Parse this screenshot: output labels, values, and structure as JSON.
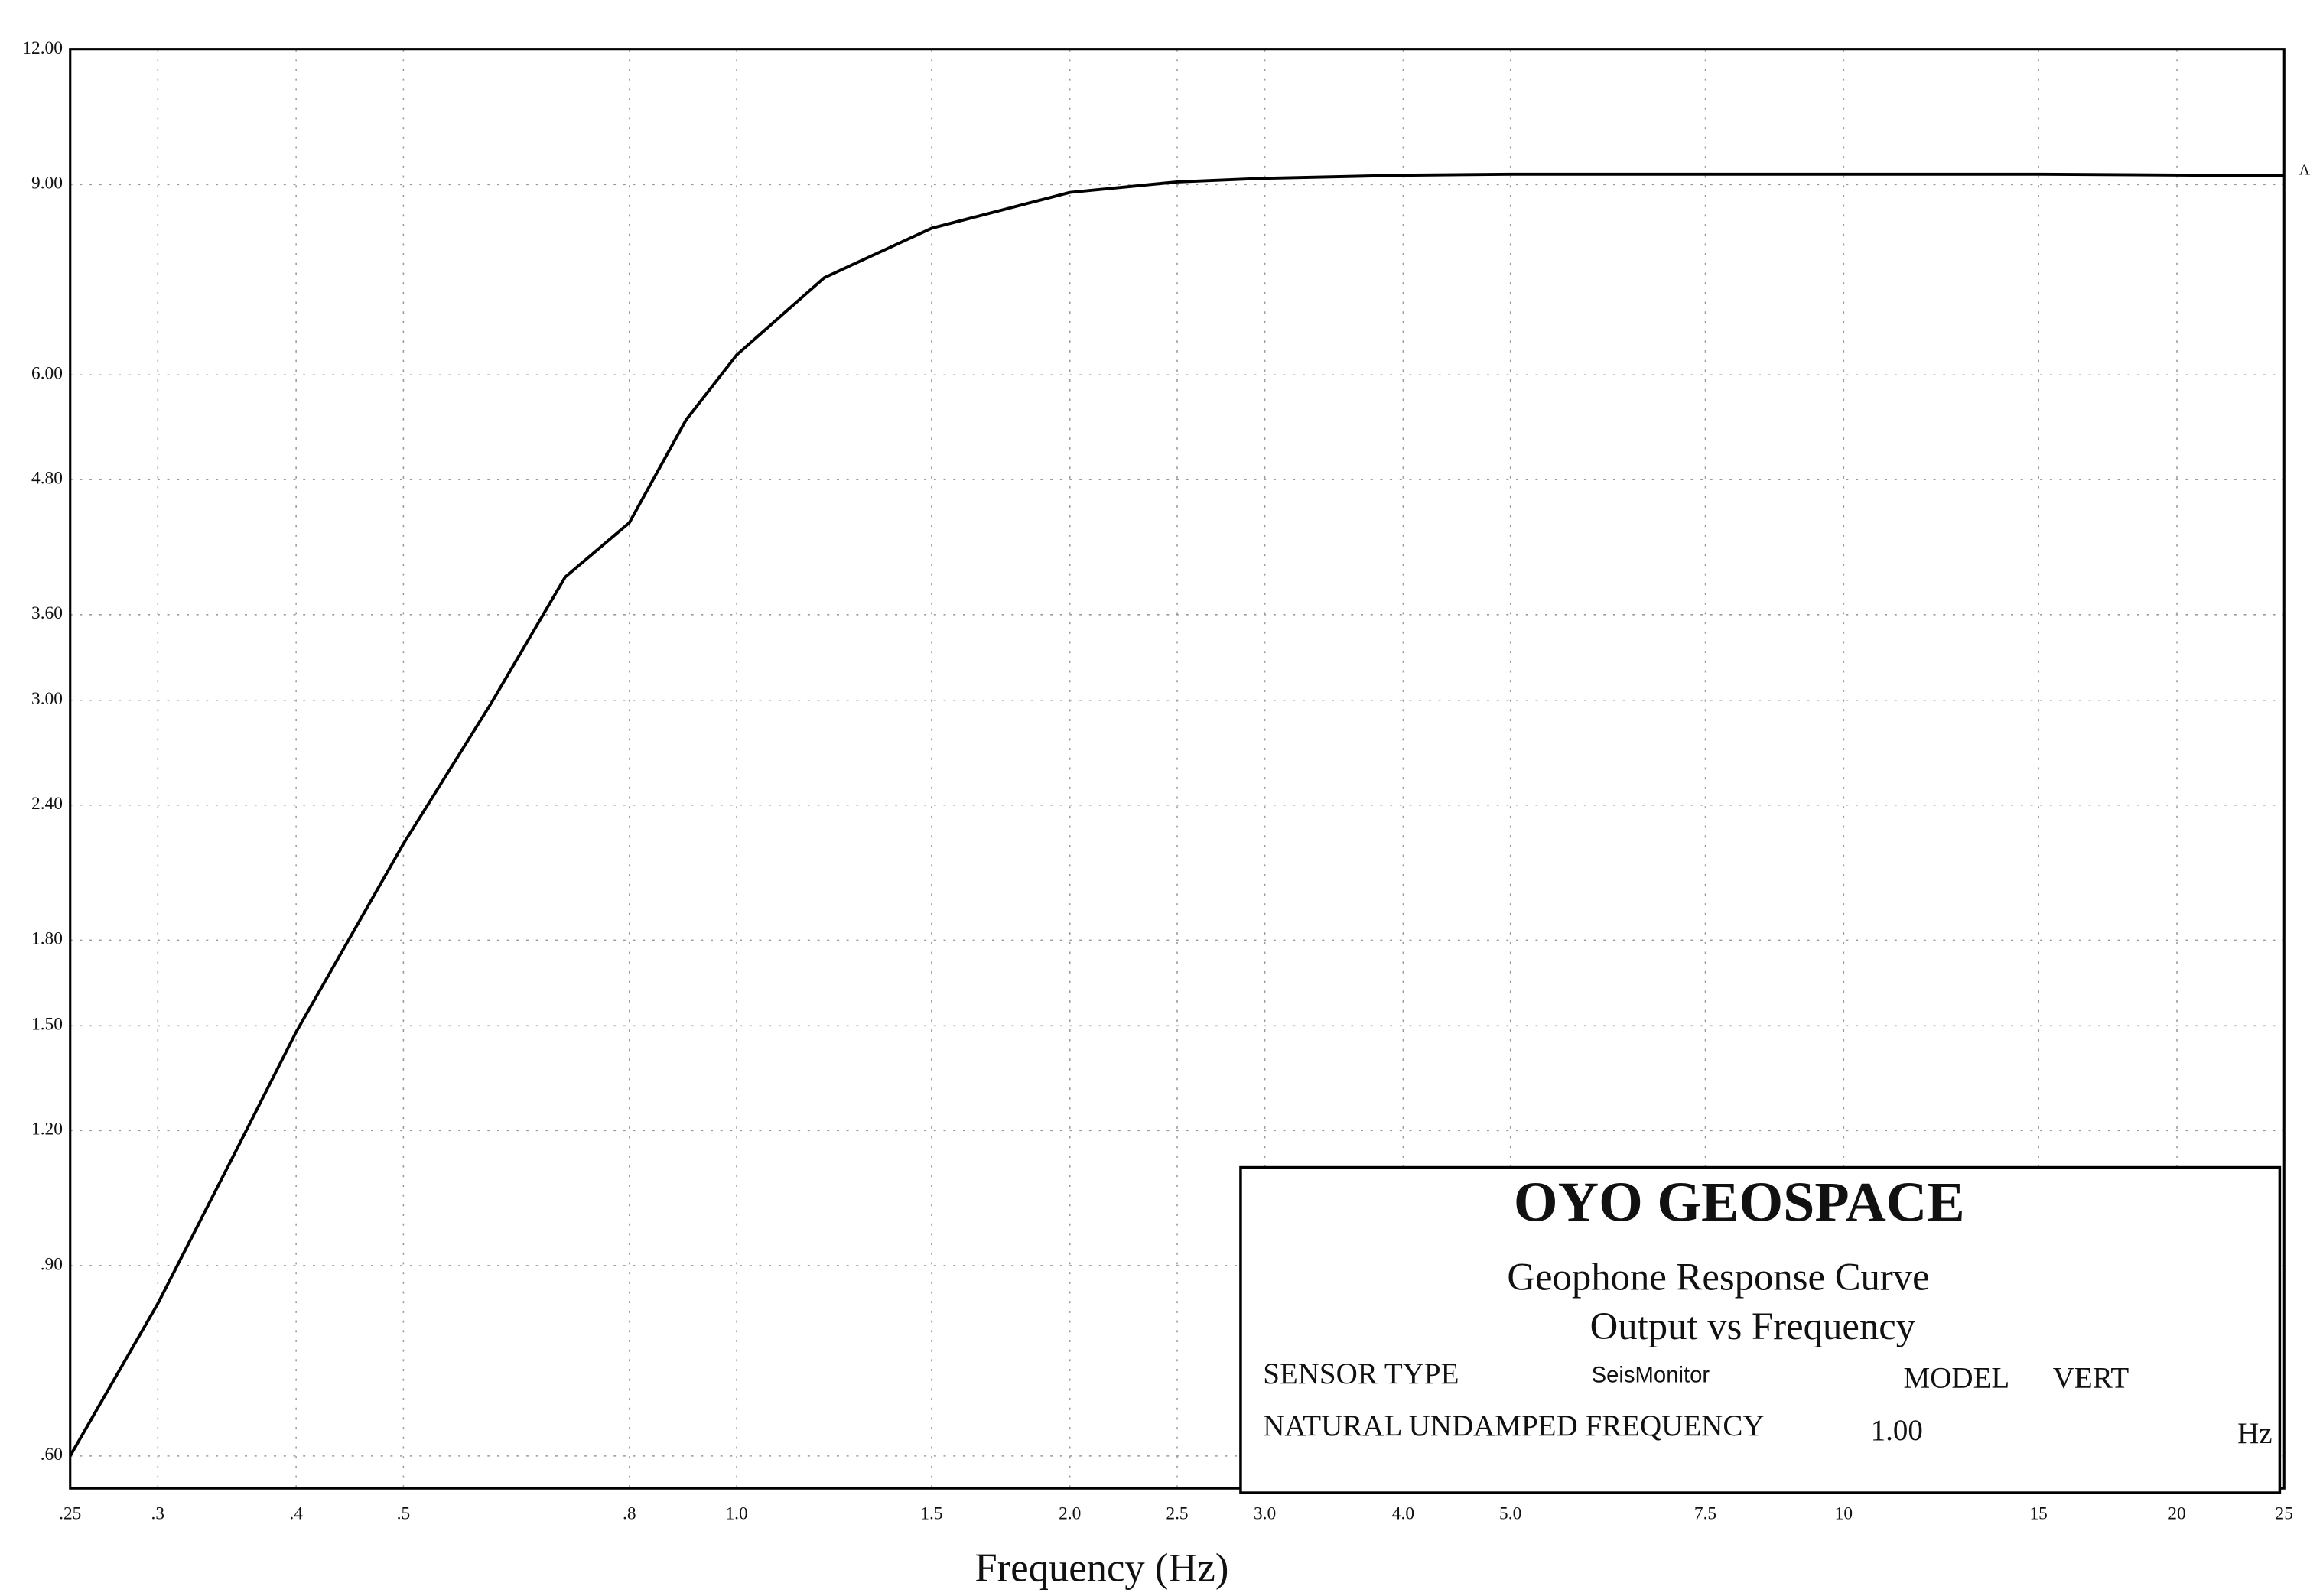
{
  "chart_data": {
    "type": "line",
    "xlabel": "Frequency (Hz)",
    "x": [
      0.25,
      0.3,
      0.35,
      0.4,
      0.5,
      0.6,
      0.7,
      0.8,
      0.9,
      1.0,
      1.2,
      1.5,
      2.0,
      2.5,
      3.0,
      4.0,
      5.0,
      7.5,
      10,
      15,
      25
    ],
    "series": [
      {
        "name": "A",
        "color": "#000000",
        "values": [
          0.6,
          0.83,
          1.13,
          1.48,
          2.21,
          2.98,
          3.9,
          4.38,
          5.45,
          6.26,
          7.38,
          8.2,
          8.85,
          9.05,
          9.12,
          9.18,
          9.2,
          9.2,
          9.2,
          9.2,
          9.17
        ]
      }
    ],
    "xscale": "log",
    "yscale": "log",
    "xlim": [
      0.25,
      25
    ],
    "ylim": [
      0.56,
      12
    ],
    "xticks": [
      {
        "value": 0.25,
        "label": ".25"
      },
      {
        "value": 0.3,
        "label": ".3"
      },
      {
        "value": 0.4,
        "label": ".4"
      },
      {
        "value": 0.5,
        "label": ".5"
      },
      {
        "value": 0.8,
        "label": ".8"
      },
      {
        "value": 1,
        "label": "1.0"
      },
      1.5,
      {
        "value": 2,
        "label": "2.0"
      },
      2.5,
      {
        "value": 3,
        "label": "3.0"
      },
      {
        "value": 4,
        "label": "4.0"
      },
      {
        "value": 5,
        "label": "5.0"
      },
      7.5,
      10,
      15,
      20,
      25
    ],
    "yticks": [
      {
        "value": 12,
        "label": "12.00"
      },
      {
        "value": 9,
        "label": "9.00"
      },
      {
        "value": 6,
        "label": "6.00"
      },
      {
        "value": 4.8,
        "label": "4.80"
      },
      {
        "value": 3.6,
        "label": "3.60"
      },
      {
        "value": 3,
        "label": "3.00"
      },
      {
        "value": 2.4,
        "label": "2.40"
      },
      {
        "value": 1.8,
        "label": "1.80"
      },
      {
        "value": 1.5,
        "label": "1.50"
      },
      {
        "value": 1.2,
        "label": "1.20"
      },
      {
        "value": 0.9,
        "label": ".90"
      },
      {
        "value": 0.6,
        "label": ".60"
      }
    ],
    "grid": true,
    "info_box": {
      "company": "OYO GEOSPACE",
      "title": "Geophone Response Curve",
      "subtitle": "Output vs Frequency",
      "sensor_type_label": "SENSOR TYPE",
      "sensor_type": "SeisMonitor",
      "model_label": "MODEL",
      "model": "VERT",
      "frequency_label": "NATURAL UNDAMPED FREQUENCY",
      "frequency": "1.00",
      "frequency_unit": "Hz"
    }
  }
}
